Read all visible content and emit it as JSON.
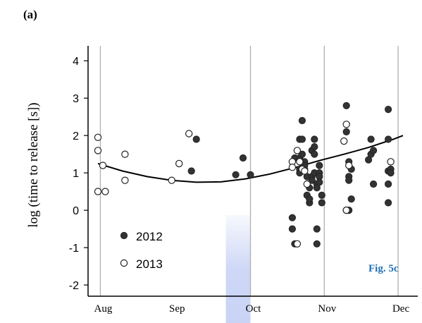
{
  "panel_label": "(a)",
  "figure_label": "Fig. 5c",
  "colors": {
    "series_2012": "#333333",
    "series_2013": "#ffffff",
    "figure_label": "#1f6fb5",
    "highlight": "#c9d3f5",
    "gridline": "#b0b0b0"
  },
  "chart_data": {
    "type": "scatter",
    "title": "",
    "xlabel": "",
    "ylabel": "log (time to release [s])",
    "x_tick_labels": [
      "Aug",
      "Sep",
      "Oct",
      "Nov",
      "Dec"
    ],
    "x_tick_values": [
      1,
      31,
      62,
      92,
      122
    ],
    "vertical_grid_at_days": [
      1,
      62,
      92,
      122
    ],
    "grid": "vertical lines at month boundaries",
    "xlim": [
      -4,
      130
    ],
    "ylim": [
      -2.3,
      4.4
    ],
    "y_ticks": [
      -2,
      -1,
      0,
      1,
      2,
      3,
      4
    ],
    "legend": {
      "placement": "bottom-left",
      "entries": [
        "2012",
        "2013"
      ]
    },
    "series": [
      {
        "name": "2012",
        "marker": "filled circle",
        "x": [
          38,
          40,
          56,
          59,
          62,
          79,
          79,
          80,
          80,
          82,
          82,
          82,
          82,
          83,
          83,
          83,
          84,
          84,
          84,
          85,
          85,
          86,
          86,
          86,
          87,
          87,
          87,
          88,
          88,
          88,
          88,
          89,
          89,
          89,
          89,
          90,
          90,
          90,
          90,
          91,
          91,
          101,
          101,
          102,
          102,
          102,
          102,
          103,
          103,
          110,
          111,
          111,
          112,
          112,
          118,
          118,
          118,
          118,
          118,
          119,
          119
        ],
        "y": [
          1.05,
          1.9,
          0.95,
          1.4,
          0.95,
          -0.2,
          -0.5,
          -0.9,
          1.4,
          1.4,
          1.1,
          1.0,
          1.9,
          2.4,
          1.9,
          1.5,
          1.3,
          1.1,
          1.2,
          0.9,
          0.4,
          0.2,
          0.6,
          0.3,
          1.6,
          0.9,
          0.8,
          1.9,
          1.7,
          1.5,
          1.0,
          0.7,
          0.6,
          -0.5,
          -0.9,
          1.2,
          1.0,
          0.9,
          0.75,
          0.2,
          0.4,
          2.8,
          2.1,
          1.3,
          0.9,
          0.8,
          0.0,
          1.1,
          0.3,
          1.35,
          1.9,
          1.5,
          0.7,
          1.6,
          2.7,
          1.9,
          1.05,
          0.7,
          0.2,
          1.1,
          1.0
        ]
      },
      {
        "name": "2013",
        "marker": "open circle",
        "x": [
          0,
          0,
          0,
          2,
          3,
          11,
          11,
          30,
          33,
          37,
          79,
          79,
          81,
          81,
          82,
          83,
          84,
          85,
          100,
          101,
          101,
          101,
          102,
          119
        ],
        "y": [
          1.95,
          1.6,
          0.5,
          1.2,
          0.5,
          1.5,
          0.8,
          0.8,
          1.25,
          2.05,
          1.3,
          1.15,
          -0.9,
          1.6,
          1.3,
          1.1,
          1.05,
          0.7,
          1.85,
          0.0,
          2.3,
          0.0,
          1.2,
          1.3
        ]
      }
    ],
    "fit_curve": {
      "description": "quadratic trend line",
      "x": [
        0,
        10,
        20,
        30,
        40,
        50,
        60,
        70,
        80,
        90,
        100,
        110,
        120,
        124
      ],
      "y": [
        1.25,
        1.05,
        0.9,
        0.8,
        0.75,
        0.76,
        0.84,
        0.97,
        1.14,
        1.33,
        1.5,
        1.68,
        1.9,
        2.0
      ]
    },
    "highlight_band_x": [
      52,
      62
    ]
  }
}
